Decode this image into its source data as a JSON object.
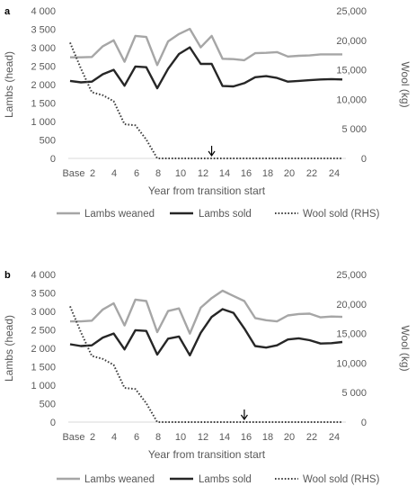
{
  "chart_data": [
    {
      "type": "line",
      "panel_label": "a",
      "x": [
        "Base",
        1,
        2,
        3,
        4,
        5,
        6,
        7,
        8,
        9,
        10,
        11,
        12,
        13,
        14,
        15,
        16,
        17,
        18,
        19,
        20,
        21,
        22,
        23,
        24,
        25
      ],
      "x_tick_labels": [
        "Base",
        "2",
        "4",
        "6",
        "8",
        "10",
        "12",
        "14",
        "16",
        "18",
        "20",
        "22",
        "24"
      ],
      "xlabel": "Year from transition start",
      "ylabel": "Lambs (head)",
      "ylabel_right": "Wool (kg)",
      "ylim": [
        0,
        4000
      ],
      "ylim_right": [
        0,
        25000
      ],
      "y_ticks": [
        "0",
        "500",
        "1 000",
        "1 500",
        "2 000",
        "2 500",
        "3 000",
        "3 500",
        "4 000"
      ],
      "y_ticks_right": [
        "0",
        "5 000",
        "10,000",
        "15,000",
        "20,000",
        "25,000"
      ],
      "arrow_x": 13,
      "series": [
        {
          "name": "Lambs weaned",
          "axis": "left",
          "color": "#a6a6a6",
          "style": "solid",
          "values": [
            2740,
            2740,
            2750,
            3040,
            3200,
            2620,
            3320,
            3290,
            2530,
            3170,
            3370,
            3510,
            3010,
            3320,
            2700,
            2690,
            2660,
            2850,
            2860,
            2880,
            2760,
            2780,
            2790,
            2820,
            2820,
            2820
          ]
        },
        {
          "name": "Lambs sold",
          "axis": "left",
          "color": "#262626",
          "style": "solid",
          "values": [
            2100,
            2060,
            2080,
            2280,
            2400,
            1970,
            2490,
            2470,
            1900,
            2430,
            2830,
            3010,
            2560,
            2560,
            1960,
            1950,
            2040,
            2200,
            2230,
            2180,
            2080,
            2100,
            2120,
            2140,
            2150,
            2140
          ]
        },
        {
          "name": "Wool sold (RHS)",
          "axis": "right",
          "color": "#404040",
          "style": "dotted",
          "values": [
            19600,
            15200,
            11200,
            10700,
            9700,
            5800,
            5600,
            3200,
            0,
            0,
            0,
            0,
            0,
            0,
            0,
            0,
            0,
            0,
            0,
            0,
            0,
            0,
            0,
            0,
            0,
            0
          ]
        }
      ]
    },
    {
      "type": "line",
      "panel_label": "b",
      "x": [
        "Base",
        1,
        2,
        3,
        4,
        5,
        6,
        7,
        8,
        9,
        10,
        11,
        12,
        13,
        14,
        15,
        16,
        17,
        18,
        19,
        20,
        21,
        22,
        23,
        24,
        25
      ],
      "x_tick_labels": [
        "Base",
        "2",
        "4",
        "6",
        "8",
        "10",
        "12",
        "14",
        "16",
        "18",
        "20",
        "22",
        "24"
      ],
      "xlabel": "Year from transition start",
      "ylabel": "Lambs (head)",
      "ylabel_right": "Wool (kg)",
      "ylim": [
        0,
        4000
      ],
      "ylim_right": [
        0,
        25000
      ],
      "y_ticks": [
        "0",
        "500",
        "1 000",
        "1 500",
        "2 000",
        "2 500",
        "3 000",
        "3 500",
        "4 000"
      ],
      "y_ticks_right": [
        "0",
        "5 000",
        "10,000",
        "15,000",
        "20,000",
        "25,000"
      ],
      "arrow_x": 16,
      "series": [
        {
          "name": "Lambs weaned",
          "axis": "left",
          "color": "#a6a6a6",
          "style": "solid",
          "values": [
            2730,
            2730,
            2750,
            3050,
            3220,
            2620,
            3320,
            3280,
            2440,
            3010,
            3080,
            2400,
            3100,
            3360,
            3560,
            3420,
            3280,
            2820,
            2760,
            2730,
            2890,
            2930,
            2940,
            2840,
            2860,
            2850
          ]
        },
        {
          "name": "Lambs sold",
          "axis": "left",
          "color": "#262626",
          "style": "solid",
          "values": [
            2110,
            2060,
            2080,
            2290,
            2400,
            1970,
            2490,
            2470,
            1830,
            2260,
            2320,
            1810,
            2420,
            2850,
            3060,
            2960,
            2540,
            2060,
            2020,
            2080,
            2240,
            2270,
            2220,
            2130,
            2140,
            2170
          ]
        },
        {
          "name": "Wool sold (RHS)",
          "axis": "right",
          "color": "#404040",
          "style": "dotted",
          "values": [
            19600,
            15200,
            11200,
            10700,
            9700,
            5800,
            5600,
            3200,
            0,
            0,
            0,
            0,
            0,
            0,
            0,
            0,
            0,
            0,
            0,
            0,
            0,
            0,
            0,
            0,
            0,
            0
          ]
        }
      ]
    }
  ]
}
